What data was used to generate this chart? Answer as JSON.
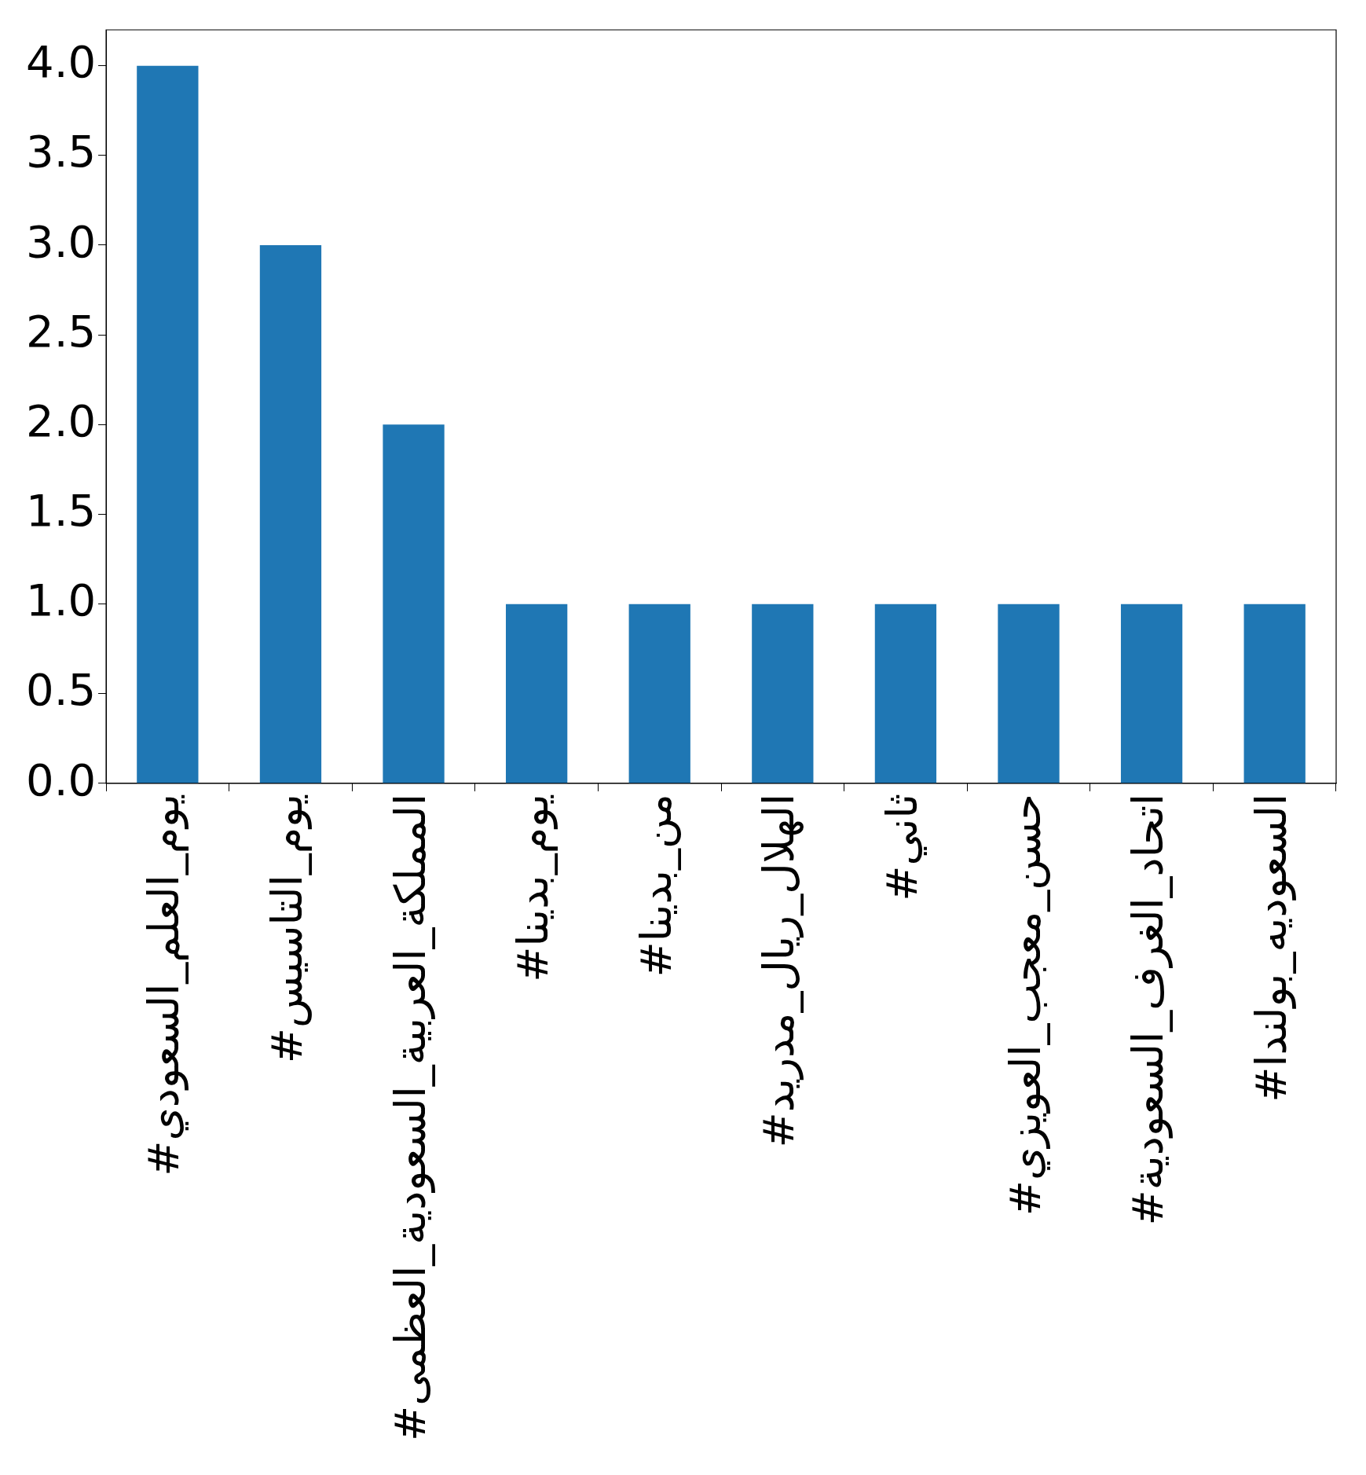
{
  "chart_data": {
    "type": "bar",
    "categories": [
      "#يوم_العلم_السعودي",
      "#يوم_التاسيس",
      "#المملكة_العربية_السعودية_العظمى",
      "#يوم_بدينا",
      "#من_بدينا",
      "#الهلال_ريال_مدريد",
      "#ثاني",
      "#حسن_معجب_العويزي",
      "#اتحاد_الغرف_السعودية",
      "#السعوديه_بولندا"
    ],
    "values": [
      4,
      3,
      2,
      1,
      1,
      1,
      1,
      1,
      1,
      1
    ],
    "color": "#1f77b4",
    "ylim": [
      0,
      4.2
    ],
    "yticks": [
      {
        "value": 0,
        "label": "0.0"
      },
      0.5,
      {
        "value": 1,
        "label": "1.0"
      },
      1.5,
      {
        "value": 2,
        "label": "2.0"
      },
      2.5,
      {
        "value": 3,
        "label": "3.0"
      },
      3.5,
      {
        "value": 4,
        "label": "4.0"
      }
    ],
    "grid": false,
    "legend": false
  }
}
